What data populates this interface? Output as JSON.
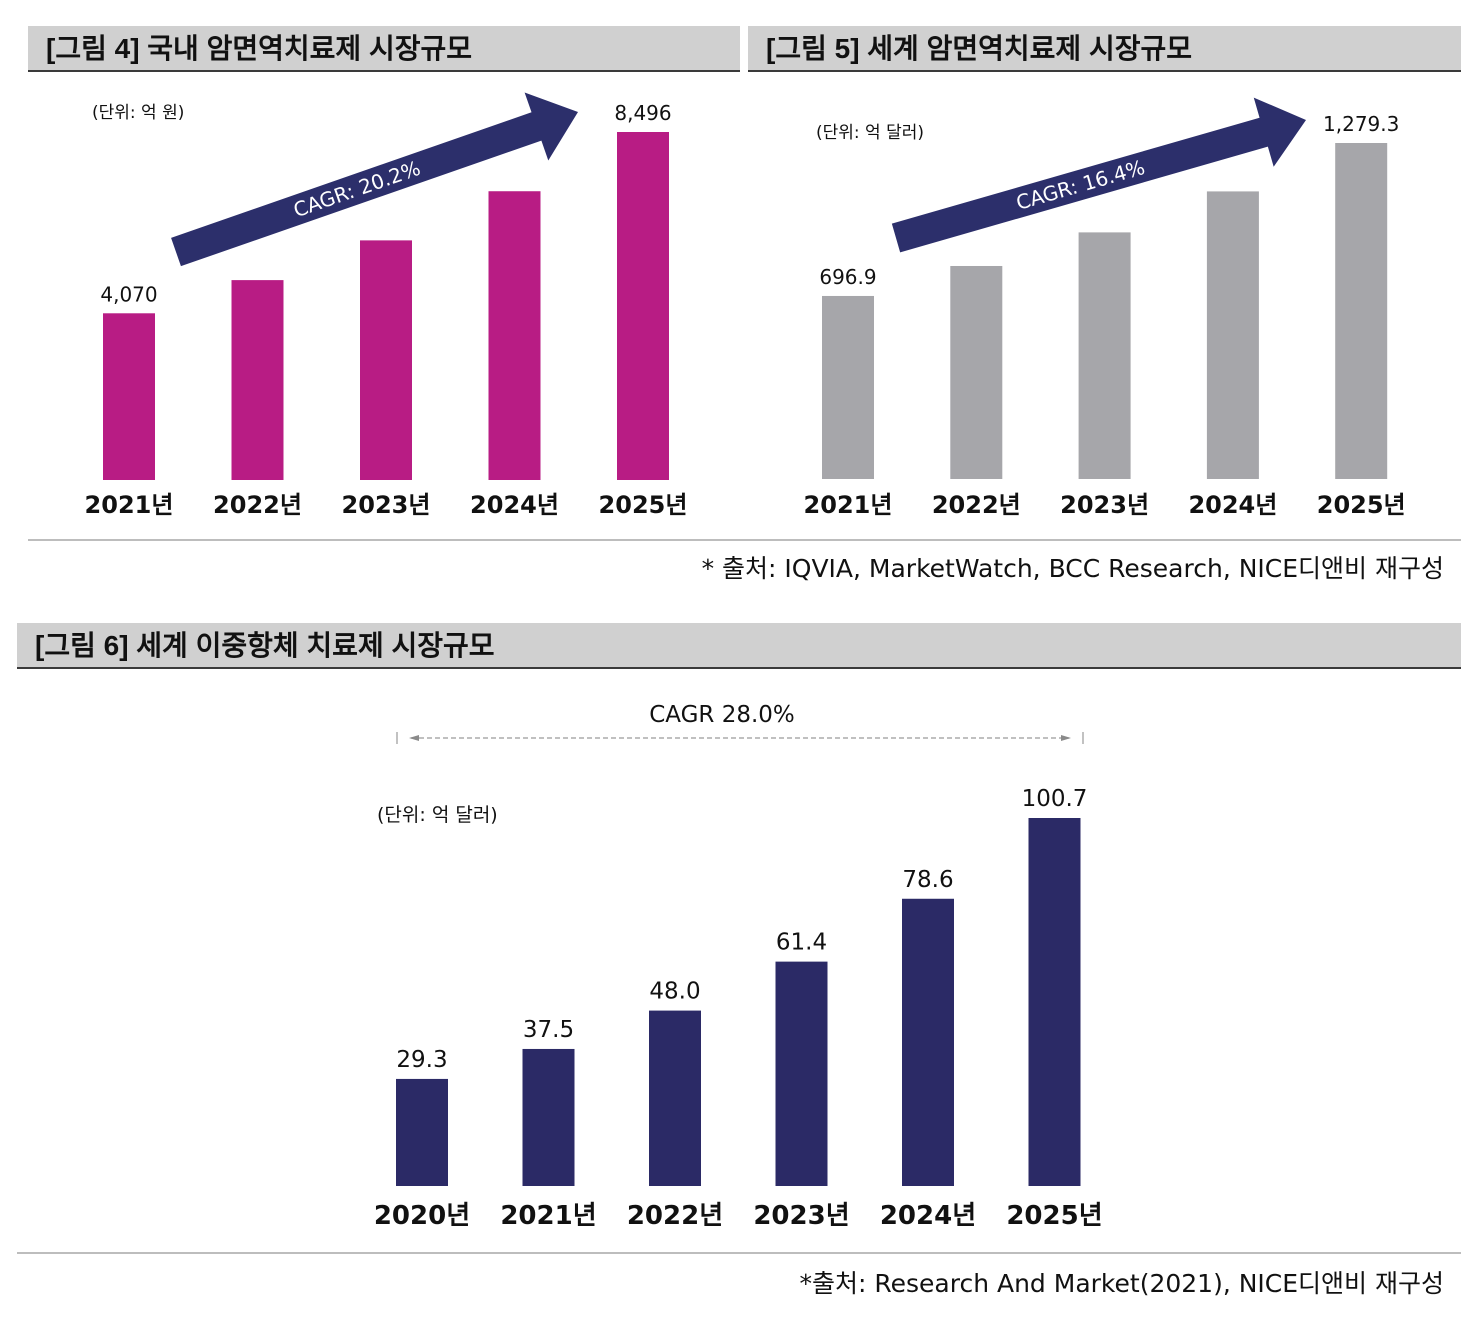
{
  "figures": [
    {
      "title": "[그림 4] 국내 암면역치료제 시장규모",
      "unit": "(단위: 억 원)"
    },
    {
      "title": "[그림 5] 세계 암면역치료제 시장규모",
      "unit": "(단위: 억 달러)"
    },
    {
      "title": "[그림 6] 세계 이중항체 치료제 시장규모",
      "unit": "(단위: 억 달러)"
    }
  ],
  "sources": [
    "* 출처: IQVIA, MarketWatch, BCC Research, NICE디앤비 재구성",
    "*출처: Research And Market(2021), NICE디앤비 재구성"
  ],
  "colors": {
    "fig4_bar": "#b81c84",
    "fig5_bar": "#a6a6aa",
    "fig6_bar": "#2b2a66",
    "arrow": "#2c2f6b",
    "title_bg": "#d0d0d0"
  },
  "chart_data": [
    {
      "type": "bar",
      "title": "[그림 4] 국내 암면역치료제 시장규모",
      "ylabel": "억 원",
      "categories": [
        "2021년",
        "2022년",
        "2023년",
        "2024년",
        "2025년"
      ],
      "values": [
        4070,
        4880,
        5850,
        7050,
        8496
      ],
      "labels": [
        "4,070",
        "",
        "",
        "",
        "8,496"
      ],
      "annotation": "CAGR: 20.2%",
      "ylim": [
        0,
        9000
      ],
      "grid": false
    },
    {
      "type": "bar",
      "title": "[그림 5] 세계 암면역치료제 시장규모",
      "ylabel": "억 달러",
      "categories": [
        "2021년",
        "2022년",
        "2023년",
        "2024년",
        "2025년"
      ],
      "values": [
        696.9,
        811,
        939,
        1095,
        1279.3
      ],
      "labels": [
        "696.9",
        "",
        "",
        "",
        "1,279.3"
      ],
      "annotation": "CAGR: 16.4%",
      "ylim": [
        0,
        1350
      ],
      "grid": false
    },
    {
      "type": "bar",
      "title": "[그림 6] 세계 이중항체 치료제 시장규모",
      "ylabel": "억 달러",
      "categories": [
        "2020년",
        "2021년",
        "2022년",
        "2023년",
        "2024년",
        "2025년"
      ],
      "values": [
        29.3,
        37.5,
        48.0,
        61.4,
        78.6,
        100.7
      ],
      "labels": [
        "29.3",
        "37.5",
        "48.0",
        "61.4",
        "78.6",
        "100.7"
      ],
      "annotation": "CAGR 28.0%",
      "ylim": [
        0,
        110
      ],
      "grid": false
    }
  ]
}
